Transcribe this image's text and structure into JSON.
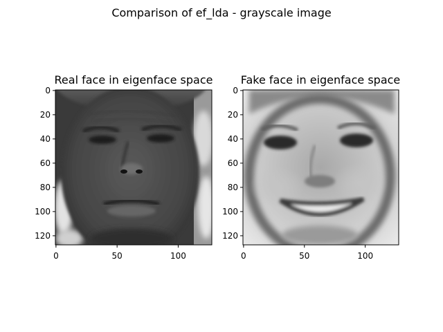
{
  "figure": {
    "suptitle": "Comparison of ef_lda - grayscale image",
    "background": "#ffffff"
  },
  "chart_data": [
    {
      "type": "heatmap",
      "title": "Real face in eigenface space",
      "xlabel": "",
      "ylabel": "",
      "colormap": "gray",
      "image_shape": [
        128,
        128
      ],
      "xlim": [
        0,
        127
      ],
      "ylim": [
        127,
        0
      ],
      "xticks": [
        0,
        50,
        100
      ],
      "yticks": [
        0,
        20,
        40,
        60,
        80,
        100,
        120
      ],
      "grid": false,
      "legend": "none",
      "image_content": "grayscale face photograph"
    },
    {
      "type": "heatmap",
      "title": "Fake face in eigenface space",
      "xlabel": "",
      "ylabel": "",
      "colormap": "gray",
      "image_shape": [
        128,
        128
      ],
      "xlim": [
        0,
        127
      ],
      "ylim": [
        127,
        0
      ],
      "xticks": [
        0,
        50,
        100
      ],
      "yticks": [
        0,
        20,
        40,
        60,
        80,
        100,
        120
      ],
      "grid": false,
      "legend": "none",
      "image_content": "grayscale eigenface reconstruction"
    }
  ]
}
